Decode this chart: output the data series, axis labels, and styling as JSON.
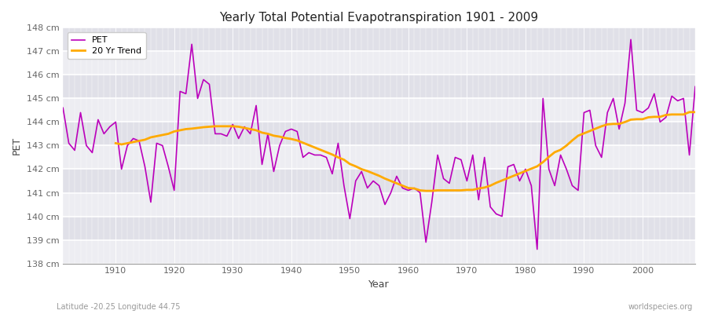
{
  "title": "Yearly Total Potential Evapotranspiration 1901 - 2009",
  "xlabel": "Year",
  "ylabel": "PET",
  "bottom_left": "Latitude -20.25 Longitude 44.75",
  "bottom_right": "worldspecies.org",
  "pet_color": "#bb00bb",
  "trend_color": "#ffaa00",
  "fig_bg_color": "#ffffff",
  "plot_bg_color": "#e0e0e8",
  "ylim": [
    138,
    148
  ],
  "yticks": [
    138,
    139,
    140,
    141,
    142,
    143,
    144,
    145,
    146,
    147,
    148
  ],
  "xlim": [
    1901,
    2009
  ],
  "xticks": [
    1910,
    1920,
    1930,
    1940,
    1950,
    1960,
    1970,
    1980,
    1990,
    2000
  ],
  "years": [
    1901,
    1902,
    1903,
    1904,
    1905,
    1906,
    1907,
    1908,
    1909,
    1910,
    1911,
    1912,
    1913,
    1914,
    1915,
    1916,
    1917,
    1918,
    1919,
    1920,
    1921,
    1922,
    1923,
    1924,
    1925,
    1926,
    1927,
    1928,
    1929,
    1930,
    1931,
    1932,
    1933,
    1934,
    1935,
    1936,
    1937,
    1938,
    1939,
    1940,
    1941,
    1942,
    1943,
    1944,
    1945,
    1946,
    1947,
    1948,
    1949,
    1950,
    1951,
    1952,
    1953,
    1954,
    1955,
    1956,
    1957,
    1958,
    1959,
    1960,
    1961,
    1962,
    1963,
    1964,
    1965,
    1966,
    1967,
    1968,
    1969,
    1970,
    1971,
    1972,
    1973,
    1974,
    1975,
    1976,
    1977,
    1978,
    1979,
    1980,
    1981,
    1982,
    1983,
    1984,
    1985,
    1986,
    1987,
    1988,
    1989,
    1990,
    1991,
    1992,
    1993,
    1994,
    1995,
    1996,
    1997,
    1998,
    1999,
    2000,
    2001,
    2002,
    2003,
    2004,
    2005,
    2006,
    2007,
    2008,
    2009
  ],
  "pet": [
    144.6,
    143.1,
    142.8,
    144.4,
    143.0,
    142.7,
    144.1,
    143.5,
    143.8,
    144.0,
    142.0,
    143.0,
    143.3,
    143.2,
    142.1,
    140.6,
    143.1,
    143.0,
    142.1,
    141.1,
    145.3,
    145.2,
    147.3,
    145.0,
    145.8,
    145.6,
    143.5,
    143.5,
    143.4,
    143.9,
    143.3,
    143.8,
    143.5,
    144.7,
    142.2,
    143.5,
    141.9,
    143.0,
    143.6,
    143.7,
    143.6,
    142.5,
    142.7,
    142.6,
    142.6,
    142.5,
    141.8,
    143.1,
    141.3,
    139.9,
    141.5,
    141.9,
    141.2,
    141.5,
    141.3,
    140.5,
    141.0,
    141.7,
    141.2,
    141.1,
    141.2,
    141.0,
    138.9,
    140.6,
    142.6,
    141.6,
    141.4,
    142.5,
    142.4,
    141.5,
    142.6,
    140.7,
    142.5,
    140.4,
    140.1,
    140.0,
    142.1,
    142.2,
    141.5,
    142.0,
    141.3,
    138.6,
    145.0,
    142.0,
    141.3,
    142.6,
    142.0,
    141.3,
    141.1,
    144.4,
    144.5,
    143.0,
    142.5,
    144.4,
    145.0,
    143.7,
    144.8,
    147.5,
    144.5,
    144.4,
    144.6,
    145.2,
    144.0,
    144.2,
    145.1,
    144.9,
    145.0,
    142.6,
    145.5
  ],
  "trend_years": [
    1910,
    1911,
    1912,
    1913,
    1914,
    1915,
    1916,
    1917,
    1918,
    1919,
    1920,
    1921,
    1922,
    1923,
    1924,
    1925,
    1926,
    1927,
    1928,
    1929,
    1930,
    1931,
    1932,
    1933,
    1934,
    1935,
    1936,
    1937,
    1938,
    1939,
    1940,
    1941,
    1942,
    1943,
    1944,
    1945,
    1946,
    1947,
    1948,
    1949,
    1950,
    1951,
    1952,
    1953,
    1954,
    1955,
    1956,
    1957,
    1958,
    1959,
    1960,
    1961,
    1962,
    1963,
    1964,
    1965,
    1966,
    1967,
    1968,
    1969,
    1970,
    1971,
    1972,
    1973,
    1974,
    1975,
    1976,
    1977,
    1978,
    1979,
    1980,
    1981,
    1982,
    1983,
    1984,
    1985,
    1986,
    1987,
    1988,
    1989,
    1990,
    1991,
    1992,
    1993,
    1994,
    1995,
    1996,
    1997,
    1998,
    1999,
    2000,
    2001,
    2002,
    2003,
    2004,
    2005,
    2006,
    2007,
    2008,
    2009
  ],
  "trend": [
    143.1,
    143.05,
    143.1,
    143.15,
    143.2,
    143.25,
    143.35,
    143.4,
    143.45,
    143.5,
    143.6,
    143.65,
    143.7,
    143.72,
    143.75,
    143.78,
    143.8,
    143.82,
    143.82,
    143.82,
    143.82,
    143.8,
    143.75,
    143.7,
    143.65,
    143.55,
    143.5,
    143.42,
    143.38,
    143.32,
    143.28,
    143.22,
    143.12,
    143.02,
    142.92,
    142.82,
    142.72,
    142.62,
    142.5,
    142.4,
    142.22,
    142.12,
    142.0,
    141.92,
    141.82,
    141.72,
    141.6,
    141.5,
    141.4,
    141.3,
    141.2,
    141.18,
    141.1,
    141.08,
    141.08,
    141.1,
    141.1,
    141.1,
    141.1,
    141.1,
    141.12,
    141.12,
    141.18,
    141.22,
    141.3,
    141.42,
    141.52,
    141.62,
    141.72,
    141.82,
    141.92,
    142.02,
    142.12,
    142.3,
    142.52,
    142.72,
    142.82,
    143.0,
    143.22,
    143.42,
    143.52,
    143.62,
    143.72,
    143.82,
    143.9,
    143.92,
    143.92,
    144.0,
    144.1,
    144.12,
    144.12,
    144.2,
    144.22,
    144.22,
    144.3,
    144.32,
    144.32,
    144.32,
    144.42,
    144.42
  ]
}
